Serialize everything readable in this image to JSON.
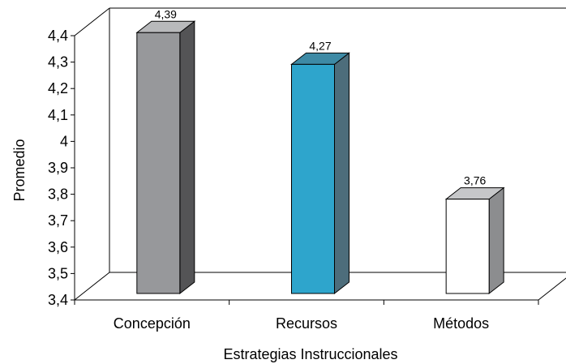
{
  "chart_data": {
    "type": "bar",
    "title": "",
    "xlabel": "Estrategias Instruccionales",
    "ylabel": "Promedio",
    "categories": [
      "Concepción",
      "Recursos",
      "Métodos"
    ],
    "values": [
      4.39,
      4.27,
      3.76
    ],
    "value_labels": [
      "4,39",
      "4,27",
      "3,76"
    ],
    "ylim": [
      3.4,
      4.4
    ],
    "yticks": [
      {
        "value": 3.4,
        "label": "3,4"
      },
      {
        "value": 3.5,
        "label": "3,5"
      },
      {
        "value": 3.6,
        "label": "3,6"
      },
      {
        "value": 3.7,
        "label": "3,7"
      },
      {
        "value": 3.8,
        "label": "3,8"
      },
      {
        "value": 3.9,
        "label": "3,9"
      },
      {
        "value": 4.0,
        "label": "4"
      },
      {
        "value": 4.1,
        "label": "4,1"
      },
      {
        "value": 4.2,
        "label": "4,2"
      },
      {
        "value": 4.3,
        "label": "4,3"
      },
      {
        "value": 4.4,
        "label": "4,4"
      }
    ],
    "grid": false,
    "style": "3d",
    "bar_colors": [
      {
        "front": "#97989b",
        "side": "#545456",
        "top": "#b8b9bb"
      },
      {
        "front": "#2ea5cc",
        "side": "#4d6d7b",
        "top": "#3e8aa5"
      },
      {
        "front": "#ffffff",
        "side": "#8c8d8f",
        "top": "#c6c7c9"
      }
    ]
  }
}
